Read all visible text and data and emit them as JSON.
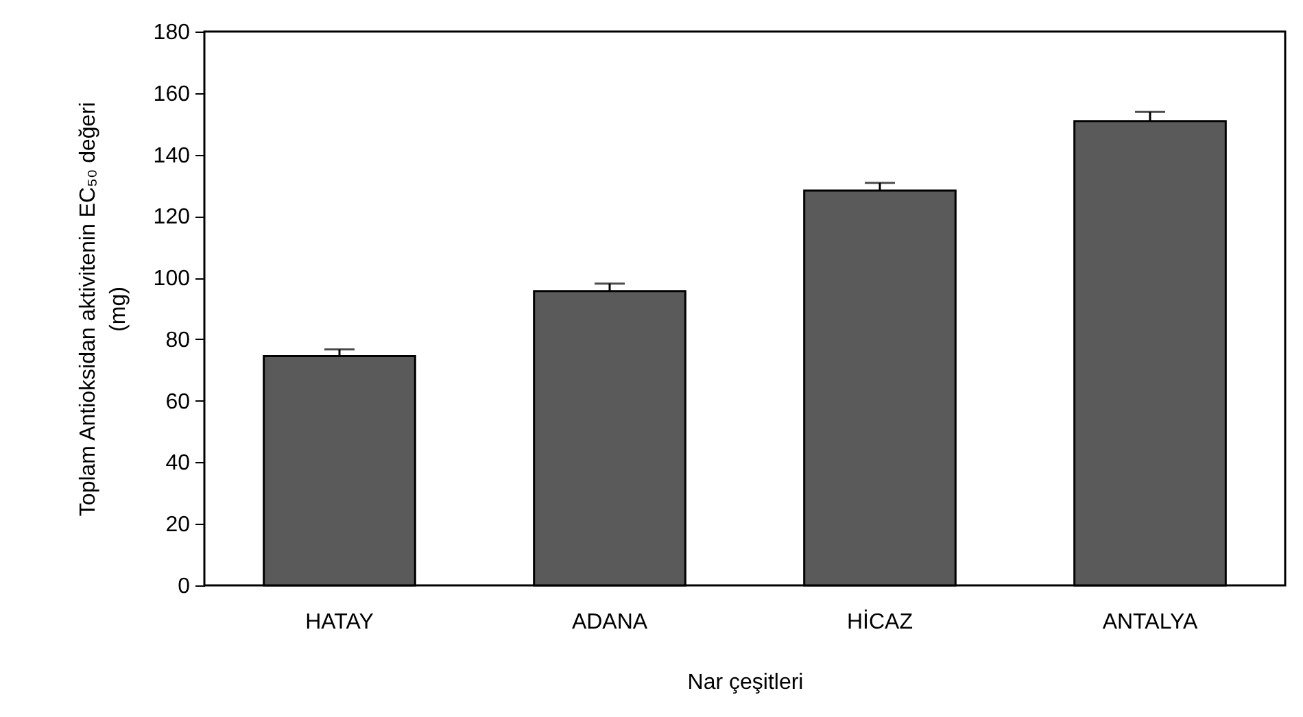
{
  "chart_data": {
    "type": "bar",
    "xlabel": "Nar çeşitleri",
    "ylabel": "Toplam Antioksidan aktivitenin EC₅₀ değeri\n(mg)",
    "categories": [
      "HATAY",
      "ADANA",
      "HİCAZ",
      "ANTALYA"
    ],
    "values": [
      74.5,
      95.6,
      128.3,
      150.9
    ],
    "errors": [
      2.2,
      2.5,
      2.5,
      3
    ],
    "color": "#5a5a5a",
    "ylim": [
      0,
      180
    ],
    "yticks": [
      0,
      20,
      40,
      60,
      80,
      100,
      120,
      140,
      160,
      180
    ],
    "grid": false
  }
}
